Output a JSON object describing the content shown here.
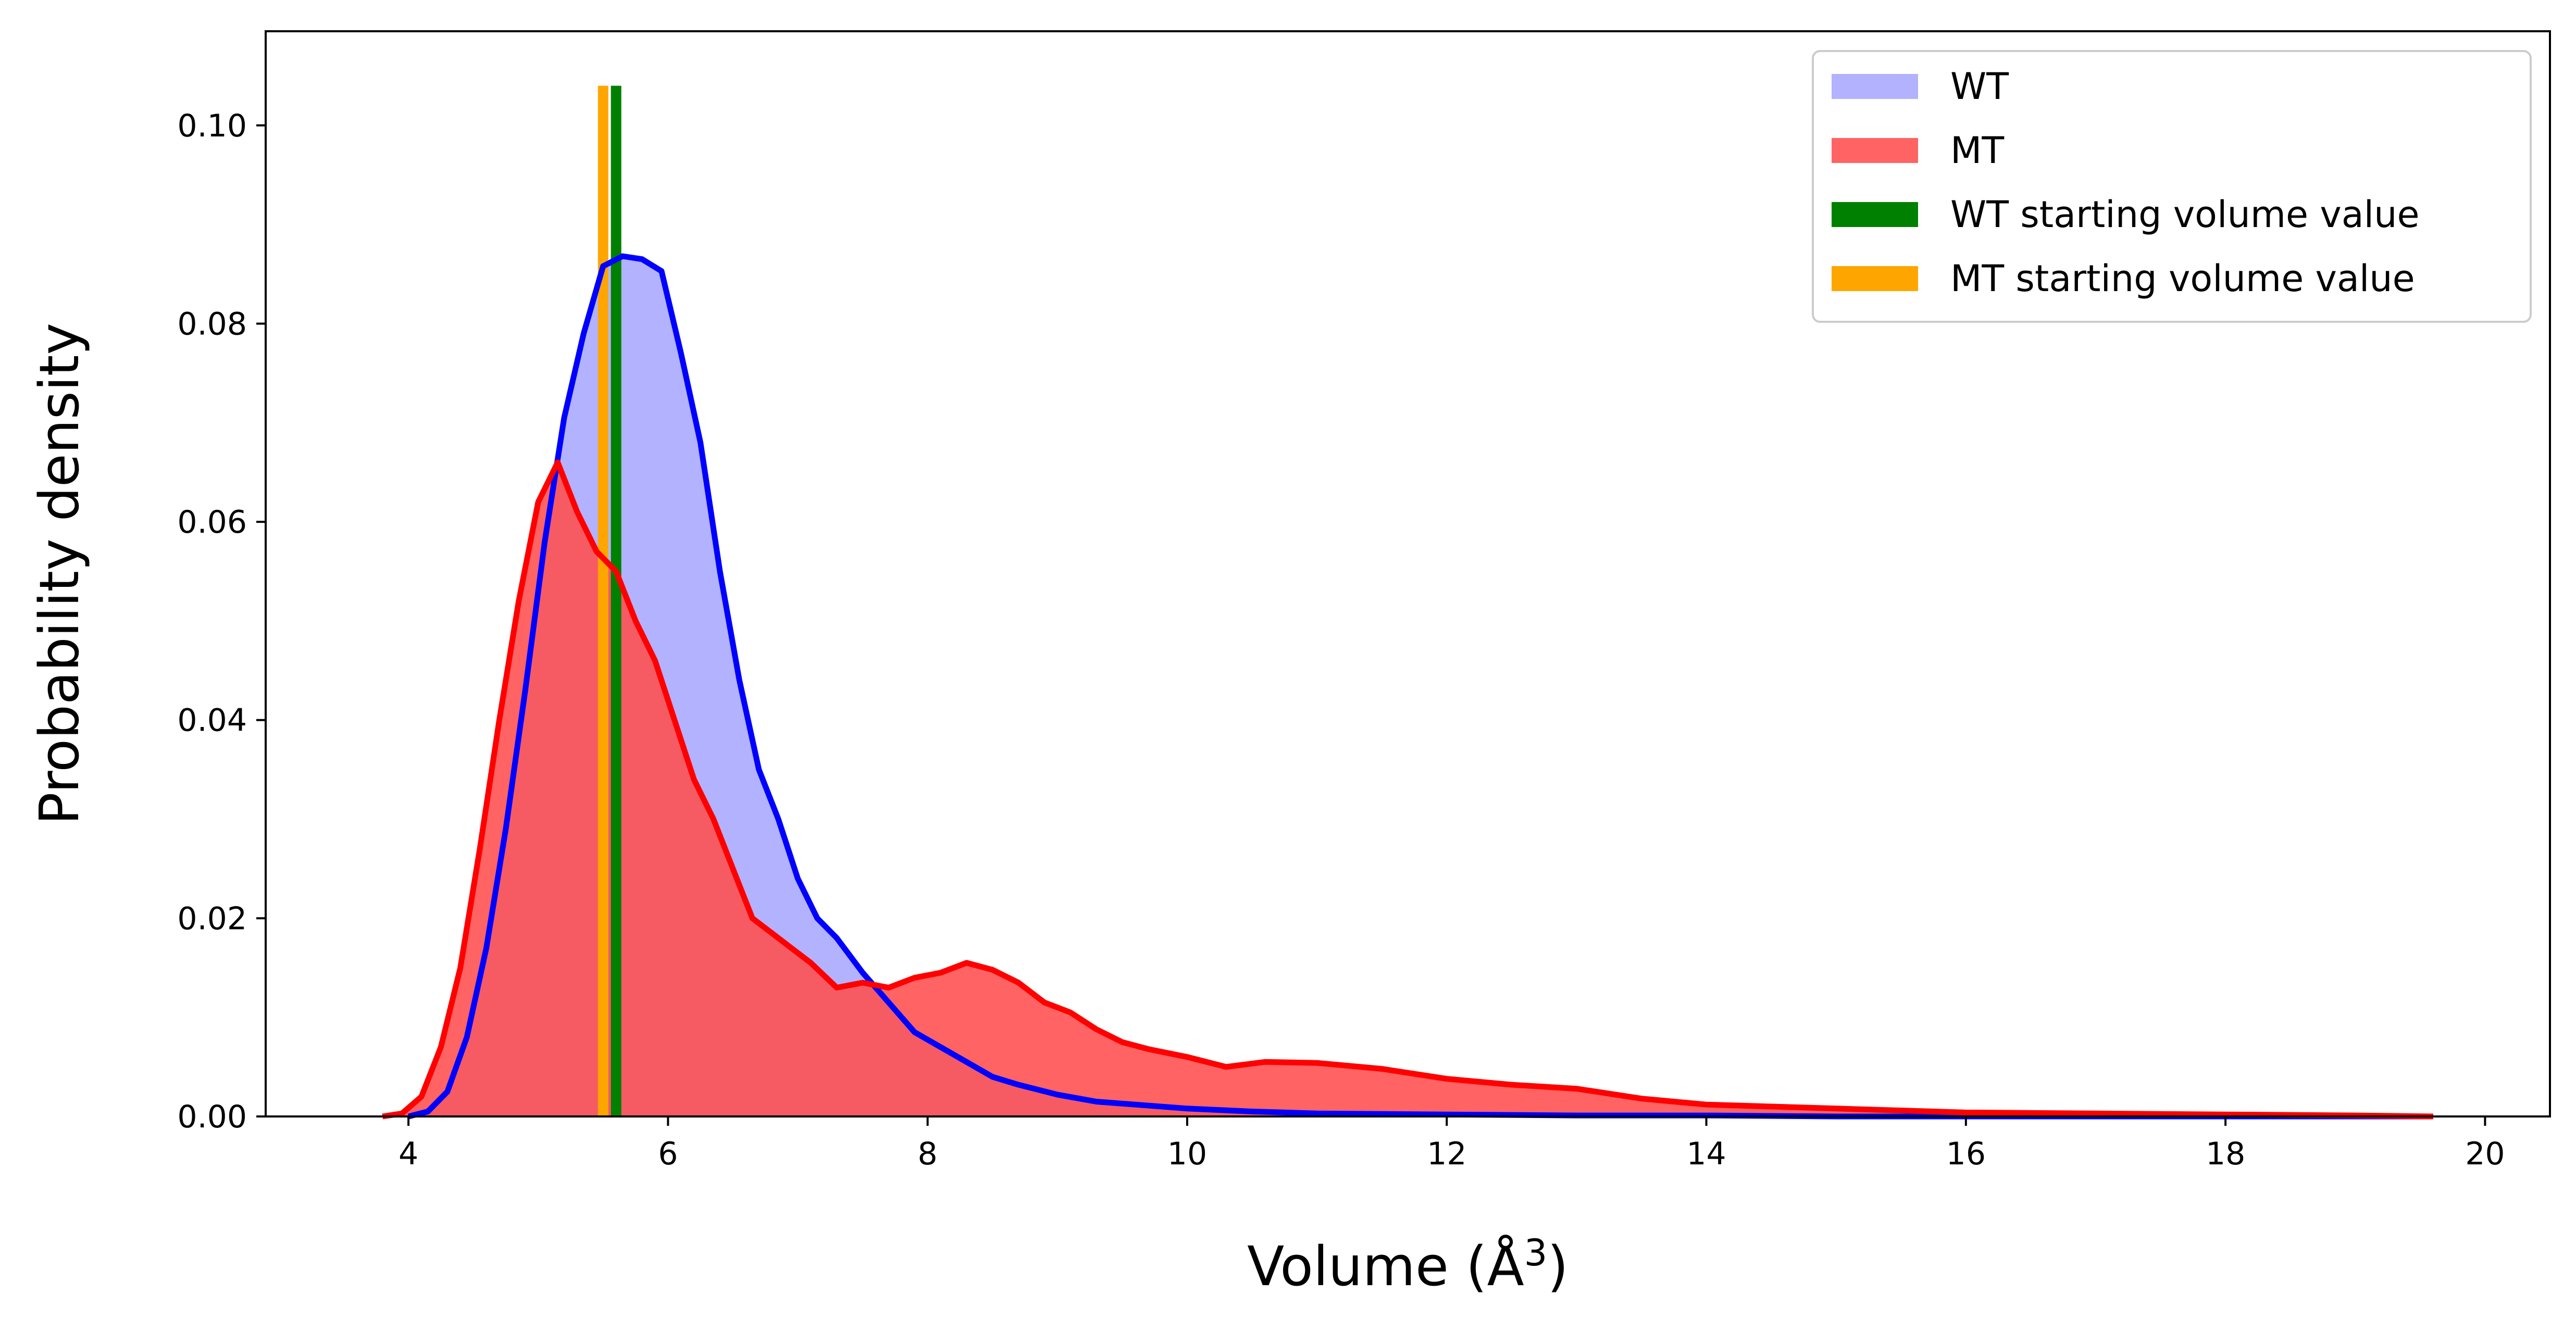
{
  "chart_data": {
    "type": "area",
    "xlabel": "Volume (Å",
    "xlabel_sup": "3",
    "xlabel_close": ")",
    "ylabel": "Probability density",
    "xlim": [
      2.9,
      20.5
    ],
    "ylim": [
      0.0,
      0.1095
    ],
    "x_ticks": [
      4,
      6,
      8,
      10,
      12,
      14,
      16,
      18,
      20
    ],
    "x_tick_labels": [
      "4",
      "6",
      "8",
      "10",
      "12",
      "14",
      "16",
      "18",
      "20"
    ],
    "y_ticks": [
      0.0,
      0.02,
      0.04,
      0.06,
      0.08,
      0.1
    ],
    "y_tick_labels": [
      "0.00",
      "0.02",
      "0.04",
      "0.06",
      "0.08",
      "0.10"
    ],
    "legend_position": "top-right",
    "series": [
      {
        "name": "WT",
        "fill_color": "#b2b2fe",
        "line_color": "#0000ff",
        "x": [
          4.0,
          4.15,
          4.3,
          4.45,
          4.6,
          4.75,
          4.9,
          5.05,
          5.2,
          5.35,
          5.5,
          5.65,
          5.8,
          5.95,
          6.1,
          6.25,
          6.4,
          6.55,
          6.7,
          6.85,
          7.0,
          7.15,
          7.3,
          7.5,
          7.7,
          7.9,
          8.1,
          8.3,
          8.5,
          8.7,
          9.0,
          9.3,
          9.6,
          10.0,
          10.5,
          11.0,
          12.0,
          13.0,
          14.0,
          15.0,
          16.0,
          17.0,
          18.0,
          19.0,
          19.6
        ],
        "values": [
          0.0,
          0.0005,
          0.0025,
          0.008,
          0.017,
          0.029,
          0.043,
          0.058,
          0.0705,
          0.079,
          0.0858,
          0.0868,
          0.0865,
          0.0853,
          0.077,
          0.068,
          0.055,
          0.044,
          0.035,
          0.03,
          0.024,
          0.02,
          0.018,
          0.0145,
          0.0115,
          0.0085,
          0.007,
          0.0055,
          0.004,
          0.0032,
          0.0022,
          0.0015,
          0.0012,
          0.0008,
          0.0005,
          0.0003,
          0.0002,
          0.0001,
          0.0001,
          0.0,
          0.0,
          0.0,
          0.0,
          0.0,
          0.0
        ]
      },
      {
        "name": "MT",
        "fill_color": "#ff4d4d",
        "line_color": "#ff0000",
        "x": [
          3.8,
          3.95,
          4.1,
          4.25,
          4.4,
          4.55,
          4.7,
          4.85,
          5.0,
          5.15,
          5.3,
          5.45,
          5.6,
          5.75,
          5.9,
          6.05,
          6.2,
          6.35,
          6.5,
          6.65,
          6.8,
          6.95,
          7.1,
          7.3,
          7.5,
          7.7,
          7.9,
          8.1,
          8.3,
          8.5,
          8.7,
          8.9,
          9.1,
          9.3,
          9.5,
          9.7,
          10.0,
          10.3,
          10.6,
          11.0,
          11.5,
          12.0,
          12.5,
          13.0,
          13.5,
          14.0,
          15.0,
          16.0,
          17.0,
          18.0,
          19.0,
          19.6
        ],
        "values": [
          0.0,
          0.0003,
          0.002,
          0.007,
          0.015,
          0.027,
          0.04,
          0.052,
          0.062,
          0.066,
          0.061,
          0.057,
          0.055,
          0.05,
          0.046,
          0.04,
          0.034,
          0.03,
          0.025,
          0.02,
          0.0185,
          0.017,
          0.0155,
          0.013,
          0.0135,
          0.013,
          0.014,
          0.0145,
          0.0155,
          0.0148,
          0.0135,
          0.0115,
          0.0105,
          0.0088,
          0.0075,
          0.0068,
          0.006,
          0.005,
          0.0055,
          0.0054,
          0.0048,
          0.0038,
          0.0032,
          0.0028,
          0.0018,
          0.0012,
          0.0008,
          0.0004,
          0.0003,
          0.0002,
          0.0001,
          0.0
        ]
      },
      {
        "name": "WT starting volume value",
        "type": "vline",
        "color": "#008000",
        "x": 5.6,
        "value": 0.104
      },
      {
        "name": "MT starting volume value",
        "type": "vline",
        "color": "#ffa500",
        "x": 5.5,
        "value": 0.104
      }
    ]
  }
}
